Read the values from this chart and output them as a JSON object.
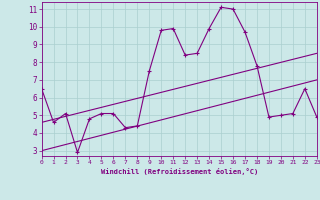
{
  "xlabel": "Windchill (Refroidissement éolien,°C)",
  "bg_color": "#cce8e8",
  "grid_color": "#aacfcf",
  "line_color": "#800080",
  "x_data": [
    0,
    1,
    2,
    3,
    4,
    5,
    6,
    7,
    8,
    9,
    10,
    11,
    12,
    13,
    14,
    15,
    16,
    17,
    18,
    19,
    20,
    21,
    22,
    23
  ],
  "y_main": [
    6.5,
    4.6,
    5.1,
    2.9,
    4.8,
    5.1,
    5.1,
    4.3,
    4.4,
    7.5,
    9.8,
    9.9,
    8.4,
    8.5,
    9.9,
    11.1,
    11.0,
    9.7,
    7.8,
    4.9,
    5.0,
    5.1,
    6.5,
    4.9
  ],
  "trend1_x": [
    0,
    23
  ],
  "trend1_y": [
    4.6,
    8.5
  ],
  "trend2_x": [
    0,
    23
  ],
  "trend2_y": [
    3.0,
    7.0
  ],
  "xlim": [
    0,
    23
  ],
  "ylim": [
    2.7,
    11.4
  ],
  "yticks": [
    3,
    4,
    5,
    6,
    7,
    8,
    9,
    10,
    11
  ],
  "xticks": [
    0,
    1,
    2,
    3,
    4,
    5,
    6,
    7,
    8,
    9,
    10,
    11,
    12,
    13,
    14,
    15,
    16,
    17,
    18,
    19,
    20,
    21,
    22,
    23
  ],
  "figsize": [
    3.2,
    2.0
  ],
  "dpi": 100
}
